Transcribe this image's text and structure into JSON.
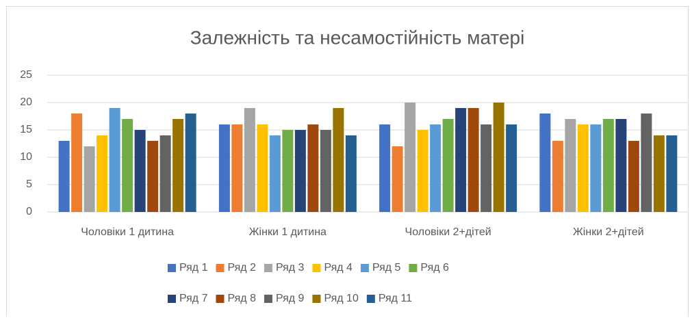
{
  "chart_data": {
    "type": "bar",
    "title": "Залежність та несамостійність матері",
    "categories": [
      "Чоловіки 1 дитина",
      "Жінки 1 дитина",
      "Чоловіки 2+дітей",
      "Жінки 2+дітей"
    ],
    "series": [
      {
        "name": "Ряд 1",
        "color": "#4472C4",
        "values": [
          13,
          16,
          16,
          18
        ]
      },
      {
        "name": "Ряд 2",
        "color": "#ED7D31",
        "values": [
          18,
          16,
          12,
          13
        ]
      },
      {
        "name": "Ряд 3",
        "color": "#A5A5A5",
        "values": [
          12,
          19,
          20,
          17
        ]
      },
      {
        "name": "Ряд 4",
        "color": "#FFC000",
        "values": [
          14,
          16,
          15,
          16
        ]
      },
      {
        "name": "Ряд 5",
        "color": "#5B9BD5",
        "values": [
          19,
          14,
          16,
          16
        ]
      },
      {
        "name": "Ряд 6",
        "color": "#70AD47",
        "values": [
          17,
          15,
          17,
          17
        ]
      },
      {
        "name": "Ряд 7",
        "color": "#264478",
        "values": [
          15,
          15,
          19,
          17
        ]
      },
      {
        "name": "Ряд 8",
        "color": "#9E480E",
        "values": [
          13,
          16,
          19,
          13
        ]
      },
      {
        "name": "Ряд 9",
        "color": "#636363",
        "values": [
          14,
          15,
          16,
          18
        ]
      },
      {
        "name": "Ряд 10",
        "color": "#997300",
        "values": [
          17,
          19,
          20,
          14
        ]
      },
      {
        "name": "Ряд 11",
        "color": "#255E91",
        "values": [
          18,
          14,
          16,
          14
        ]
      }
    ],
    "ylim": [
      0,
      25
    ],
    "yticks": [
      0,
      5,
      10,
      15,
      20,
      25
    ],
    "grid": true,
    "legend": "bottom"
  }
}
